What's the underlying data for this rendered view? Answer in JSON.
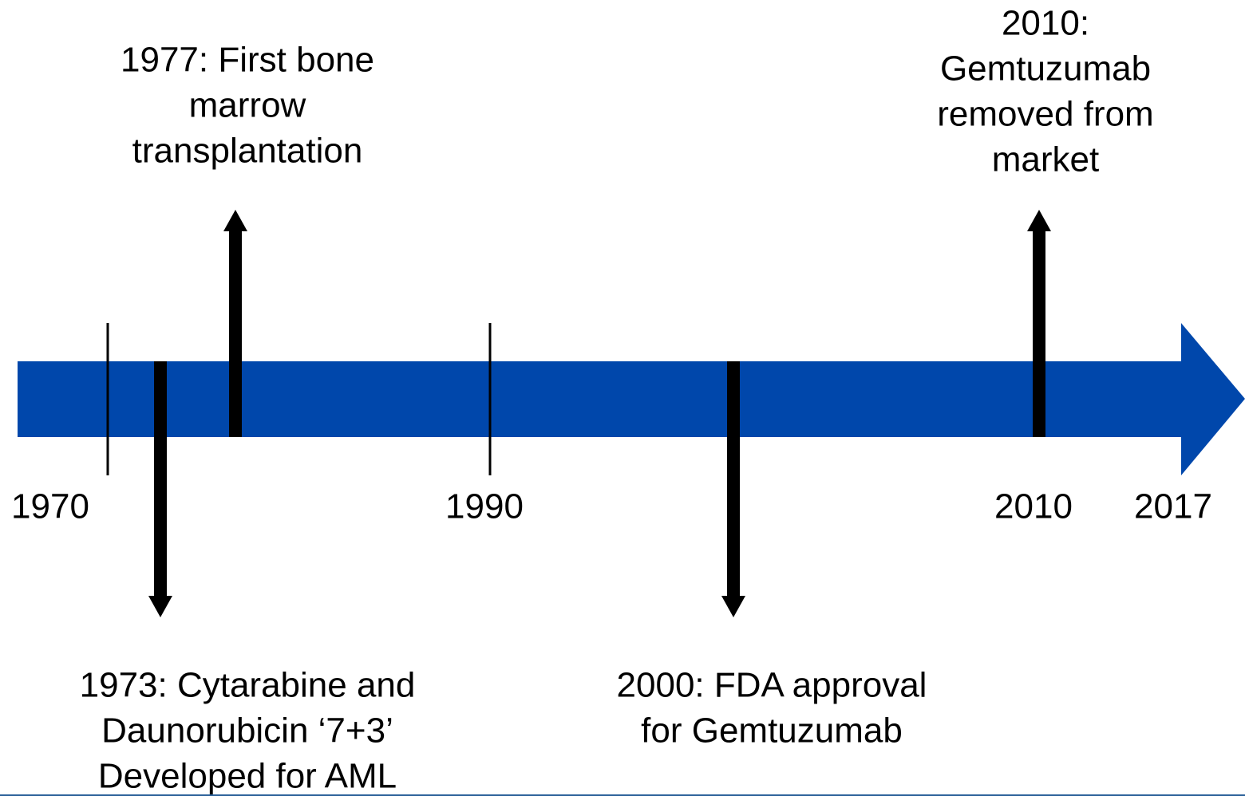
{
  "years": [
    "1970",
    "1990",
    "2010",
    "2017"
  ],
  "events": [
    {
      "lines": [
        "1977: First bone",
        "marrow",
        "transplantation"
      ]
    },
    {
      "lines": [
        "1973: Cytarabine and",
        "Daunorubicin ‘7+3’",
        "Developed for AML"
      ]
    },
    {
      "lines": [
        "2000: FDA approval",
        "for Gemtuzumab"
      ]
    },
    {
      "lines": [
        "2010:",
        "Gemtuzumab",
        "removed from",
        "market"
      ]
    }
  ]
}
